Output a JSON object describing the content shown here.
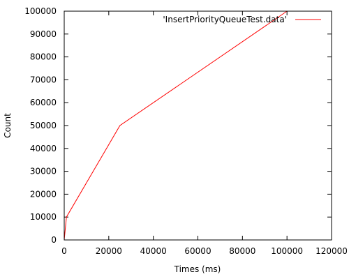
{
  "chart_data": {
    "type": "line",
    "xlabel": "Times (ms)",
    "ylabel": "Count",
    "xlim": [
      0,
      120000
    ],
    "ylim": [
      0,
      100000
    ],
    "xticks": [
      0,
      20000,
      40000,
      60000,
      80000,
      100000,
      120000
    ],
    "yticks": [
      0,
      10000,
      20000,
      30000,
      40000,
      50000,
      60000,
      70000,
      80000,
      90000,
      100000
    ],
    "grid": false,
    "legend_position": "top-right",
    "series": [
      {
        "name": "'InsertPriorityQueueTest.data'",
        "color": "#ff0000",
        "x": [
          0,
          100,
          500,
          1000,
          25000,
          100000
        ],
        "y": [
          0,
          1000,
          5000,
          10000,
          50000,
          100000
        ]
      }
    ]
  }
}
